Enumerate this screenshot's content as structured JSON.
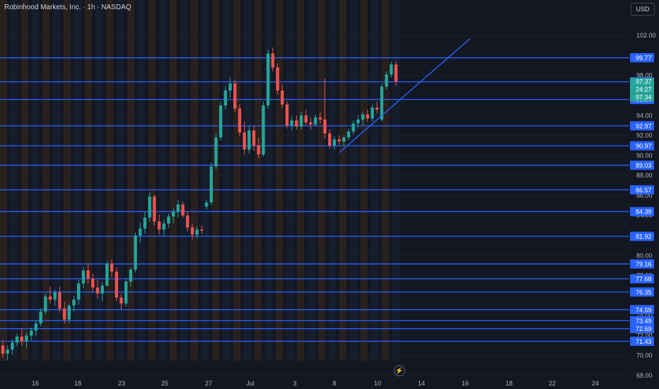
{
  "header": {
    "title": "Robinhood Markets, Inc. · 1h · NASDAQ",
    "currency": "USD"
  },
  "icons": {
    "bolt": "lightning-bolt-icon"
  },
  "colors": {
    "background": "#131722",
    "up": "#26a69a",
    "down": "#ef5350",
    "hline": "#2962ff",
    "badge": "#2962ff",
    "current": "#26a69a",
    "session_orange": "#3a2a1a",
    "session_blue": "#1a2438"
  },
  "chart_data": {
    "type": "candlestick",
    "ylim": [
      68,
      103
    ],
    "price_ticks": [
      "102.00",
      "98.00",
      "94.00",
      "92.00",
      "90.00",
      "88.00",
      "86.00",
      "84.00",
      "80.00",
      "78.00",
      "74.00",
      "72.00",
      "70.00",
      "68.00"
    ],
    "x_labels": [
      "16",
      "18",
      "23",
      "25",
      "27",
      "Jul",
      "3",
      "8",
      "10",
      "14",
      "16",
      "18",
      "22",
      "24"
    ],
    "horizontal_levels": [
      "99.77",
      "97.37",
      "95.60",
      "92.97",
      "90.97",
      "89.03",
      "86.57",
      "84.39",
      "81.92",
      "79.16",
      "77.68",
      "76.35",
      "74.59",
      "73.49",
      "72.69",
      "71.43"
    ],
    "current_price_badges": [
      "97.37",
      "24:27",
      "97.34"
    ],
    "trendline": {
      "from": [
        480,
        90.3
      ],
      "to": [
        665,
        101.7
      ]
    },
    "candles": [
      [
        71.0,
        71.5,
        69.8,
        70.2
      ],
      [
        70.2,
        71.0,
        69.5,
        70.6
      ],
      [
        70.6,
        71.6,
        70.1,
        71.3
      ],
      [
        71.3,
        72.2,
        70.9,
        71.9
      ],
      [
        71.9,
        72.7,
        71.0,
        71.4
      ],
      [
        71.4,
        72.3,
        70.8,
        72.0
      ],
      [
        72.0,
        72.8,
        71.5,
        72.5
      ],
      [
        72.5,
        73.5,
        72.0,
        73.2
      ],
      [
        73.2,
        74.7,
        72.9,
        74.4
      ],
      [
        74.4,
        76.2,
        74.1,
        75.9
      ],
      [
        75.9,
        76.9,
        75.2,
        75.6
      ],
      [
        75.6,
        76.6,
        75.0,
        76.3
      ],
      [
        76.3,
        76.9,
        74.3,
        74.7
      ],
      [
        74.7,
        75.4,
        73.2,
        73.6
      ],
      [
        73.6,
        75.2,
        73.3,
        75.0
      ],
      [
        75.0,
        76.0,
        74.4,
        75.6
      ],
      [
        75.6,
        77.6,
        75.1,
        77.2
      ],
      [
        77.2,
        78.9,
        76.7,
        78.5
      ],
      [
        78.5,
        79.2,
        77.2,
        77.7
      ],
      [
        77.7,
        78.2,
        76.4,
        76.8
      ],
      [
        76.8,
        77.6,
        75.7,
        76.2
      ],
      [
        76.2,
        77.4,
        75.4,
        77.0
      ],
      [
        77.0,
        79.4,
        76.9,
        79.2
      ],
      [
        79.2,
        79.6,
        77.9,
        78.4
      ],
      [
        78.4,
        78.8,
        75.4,
        75.8
      ],
      [
        75.8,
        76.2,
        74.6,
        75.2
      ],
      [
        75.2,
        77.7,
        74.9,
        77.4
      ],
      [
        77.4,
        78.8,
        76.9,
        78.6
      ],
      [
        78.6,
        82.3,
        78.3,
        82.0
      ],
      [
        82.0,
        83.3,
        81.3,
        82.7
      ],
      [
        82.7,
        84.4,
        82.2,
        83.8
      ],
      [
        83.8,
        86.3,
        83.4,
        85.9
      ],
      [
        85.9,
        86.1,
        83.0,
        83.4
      ],
      [
        83.4,
        84.1,
        82.1,
        82.6
      ],
      [
        82.6,
        83.6,
        82.0,
        83.2
      ],
      [
        83.2,
        84.2,
        82.8,
        83.9
      ],
      [
        83.9,
        84.8,
        83.2,
        84.4
      ],
      [
        84.4,
        85.6,
        83.8,
        85.1
      ],
      [
        85.1,
        85.4,
        83.8,
        84.0
      ],
      [
        84.0,
        84.4,
        82.4,
        82.8
      ],
      [
        82.8,
        83.2,
        81.6,
        82.1
      ],
      [
        82.1,
        82.9,
        81.7,
        82.6
      ],
      [
        82.6,
        83.0,
        82.2,
        82.5
      ],
      [
        84.9,
        85.6,
        84.6,
        85.3
      ],
      [
        85.3,
        89.3,
        85.0,
        88.9
      ],
      [
        88.9,
        92.2,
        88.6,
        91.8
      ],
      [
        91.8,
        95.4,
        91.5,
        95.0
      ],
      [
        95.0,
        96.9,
        94.6,
        96.5
      ],
      [
        96.5,
        97.8,
        95.8,
        97.2
      ],
      [
        97.2,
        97.6,
        94.3,
        94.7
      ],
      [
        94.7,
        95.1,
        91.9,
        92.3
      ],
      [
        92.3,
        93.4,
        90.1,
        90.6
      ],
      [
        90.6,
        93.0,
        90.2,
        92.5
      ],
      [
        92.5,
        93.0,
        90.5,
        91.0
      ],
      [
        91.0,
        91.8,
        89.7,
        90.1
      ],
      [
        90.1,
        95.4,
        89.9,
        95.0
      ],
      [
        95.0,
        100.6,
        94.7,
        100.2
      ],
      [
        100.2,
        100.8,
        98.4,
        98.8
      ],
      [
        98.8,
        99.2,
        96.1,
        96.5
      ],
      [
        96.5,
        97.1,
        94.7,
        95.1
      ],
      [
        95.1,
        95.4,
        92.7,
        93.0
      ],
      [
        93.0,
        93.9,
        92.5,
        93.5
      ],
      [
        93.5,
        94.0,
        92.6,
        92.9
      ],
      [
        92.9,
        94.4,
        92.6,
        94.0
      ],
      [
        94.0,
        94.6,
        93.0,
        93.3
      ],
      [
        93.3,
        93.8,
        92.6,
        93.1
      ],
      [
        93.1,
        94.1,
        92.9,
        93.8
      ],
      [
        93.8,
        94.3,
        93.2,
        93.6
      ],
      [
        93.6,
        97.7,
        91.7,
        92.2
      ],
      [
        92.2,
        92.6,
        90.7,
        91.0
      ],
      [
        91.0,
        91.9,
        90.6,
        91.6
      ],
      [
        91.6,
        92.0,
        91.1,
        91.4
      ],
      [
        91.4,
        92.0,
        91.0,
        91.8
      ],
      [
        91.8,
        92.7,
        91.5,
        92.4
      ],
      [
        92.4,
        93.5,
        92.1,
        93.2
      ],
      [
        93.2,
        94.0,
        92.7,
        93.6
      ],
      [
        93.6,
        94.4,
        93.0,
        94.1
      ],
      [
        94.1,
        94.6,
        93.4,
        93.7
      ],
      [
        93.7,
        95.1,
        93.4,
        94.8
      ],
      [
        94.8,
        95.4,
        94.2,
        94.6
      ],
      [
        93.6,
        97.2,
        93.4,
        96.9
      ],
      [
        96.9,
        98.4,
        96.6,
        98.1
      ],
      [
        98.1,
        99.4,
        97.8,
        99.1
      ],
      [
        99.1,
        99.4,
        97.0,
        97.4
      ]
    ]
  }
}
